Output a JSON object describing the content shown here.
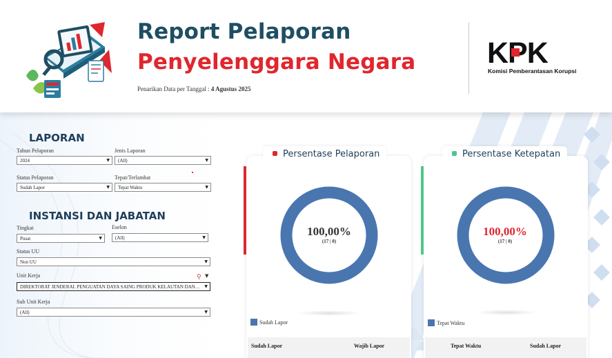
{
  "header": {
    "title_line1": "Report Pelaporan",
    "title_line2": "Penyelenggara Negara",
    "pull_date_label": "Penarikan Data per Tanggal :",
    "pull_date_value": "4 Agustus 2025",
    "logo_text": "KPK",
    "logo_subtitle": "Komisi Pemberantasan Korupsi"
  },
  "laporan": {
    "title": "LAPORAN",
    "tahun_label": "Tahun Pelaporan",
    "tahun_value": "2024",
    "jenis_label": "Jenis Laporan",
    "jenis_value": "(All)",
    "status_label": "Status Pelaporan",
    "status_value": "Sudah Lapor",
    "tepat_label": "Tepat/Terlambat",
    "tepat_value": "Tepat Waktu"
  },
  "instansi": {
    "title": "INSTANSI DAN JABATAN",
    "tingkat_label": "Tingkat",
    "tingkat_value": "Pusat",
    "eselon_label": "Eselon",
    "eselon_value": "(All)",
    "status_uu_label": "Status UU",
    "status_uu_value": "Non UU",
    "unit_kerja_label": "Unit Kerja",
    "unit_kerja_value": "DIREKTORAT JENDERAL PENGUATAN DAYA SAING PRODUK KELAUTAN DAN PERIKANAN",
    "sub_unit_label": "Sub Unit Kerja",
    "sub_unit_value": "(All)"
  },
  "cards": {
    "pelaporan": {
      "title": "Persentase Pelaporan",
      "percent_text": "100,00%",
      "sub_text": "(17 | 0)",
      "percent_value": 100,
      "legend": "Sudah Lapor",
      "col1": "Sudah Lapor",
      "col2": "Wajib Lapor",
      "accent": "#d9282f",
      "ring": "#4a76b0"
    },
    "ketepatan": {
      "title": "Persentase Ketepatan",
      "percent_text": "100,00%",
      "sub_text": "(17 | 0)",
      "percent_value": 100,
      "legend": "Tepat Waktu",
      "col1": "Tepat Waktu",
      "col2": "Sudah Lapor",
      "accent": "#4cc789",
      "ring": "#4a76b0"
    }
  },
  "icons": {
    "caret": "caret-down-icon",
    "filter": "filter-clear-icon",
    "menu": "dropdown-menu-icon"
  }
}
